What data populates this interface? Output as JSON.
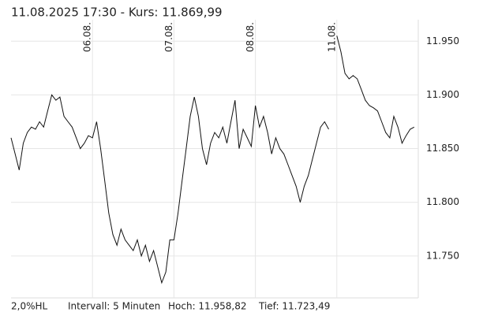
{
  "chart_data": {
    "type": "line",
    "title": "11.08.2025 17:30  -  Kurs: 11.869,99",
    "footer": [
      "2,0%HL",
      "Intervall: 5 Minuten",
      "Hoch: 11.958,82",
      "Tief: 11.723,49"
    ],
    "categories": [
      null,
      null,
      null,
      null,
      null,
      null,
      null,
      null,
      null,
      null,
      null,
      null,
      null,
      null,
      null,
      null,
      null,
      null,
      null,
      null,
      "06.08.",
      null,
      null,
      null,
      null,
      null,
      null,
      null,
      null,
      null,
      null,
      null,
      null,
      null,
      null,
      null,
      null,
      null,
      null,
      null,
      "07.08.",
      null,
      null,
      null,
      null,
      null,
      null,
      null,
      null,
      null,
      null,
      null,
      null,
      null,
      null,
      null,
      null,
      null,
      null,
      null,
      "08.08.",
      null,
      null,
      null,
      null,
      null,
      null,
      null,
      null,
      null,
      null,
      null,
      null,
      null,
      null,
      null,
      null,
      null,
      null,
      null,
      "11.08.",
      null,
      null,
      null,
      null,
      null,
      null,
      null,
      null,
      null,
      null,
      null,
      null,
      null,
      null,
      null,
      null,
      null,
      null,
      null
    ],
    "series": [
      {
        "name": "Kurs",
        "color": "#111111",
        "values": [
          11860,
          11845,
          11830,
          11855,
          11865,
          11870,
          11868,
          11875,
          11870,
          11885,
          11900,
          11895,
          11898,
          11880,
          11875,
          11870,
          11860,
          11850,
          11855,
          11862,
          11860,
          11875,
          11850,
          11820,
          11790,
          11770,
          11760,
          11775,
          11765,
          11760,
          11755,
          11765,
          11750,
          11760,
          11745,
          11755,
          11740,
          11725,
          11735,
          11765,
          11765,
          11790,
          11820,
          11850,
          11880,
          11898,
          11880,
          11850,
          11835,
          11855,
          11865,
          11860,
          11870,
          11855,
          11875,
          11895,
          11850,
          11868,
          11860,
          11852,
          11890,
          11870,
          11880,
          11865,
          11845,
          11860,
          11850,
          11845,
          11835,
          11825,
          11815,
          11800,
          11815,
          11825,
          11840,
          11855,
          11870,
          11875,
          11868,
          null,
          11955,
          11940,
          11920,
          11915,
          11918,
          11915,
          11905,
          11895,
          11890,
          11888,
          11885,
          11875,
          11865,
          11860,
          11880,
          11870,
          11855,
          11862,
          11868,
          11870
        ]
      }
    ],
    "ylim": [
      11711,
      11970
    ],
    "yticks": [
      {
        "value": 11750,
        "label": "11.750"
      },
      {
        "value": 11800,
        "label": "11.800"
      },
      {
        "value": 11850,
        "label": "11.850"
      },
      {
        "value": 11900,
        "label": "11.900"
      },
      {
        "value": 11950,
        "label": "11.950"
      }
    ],
    "grid": true
  }
}
